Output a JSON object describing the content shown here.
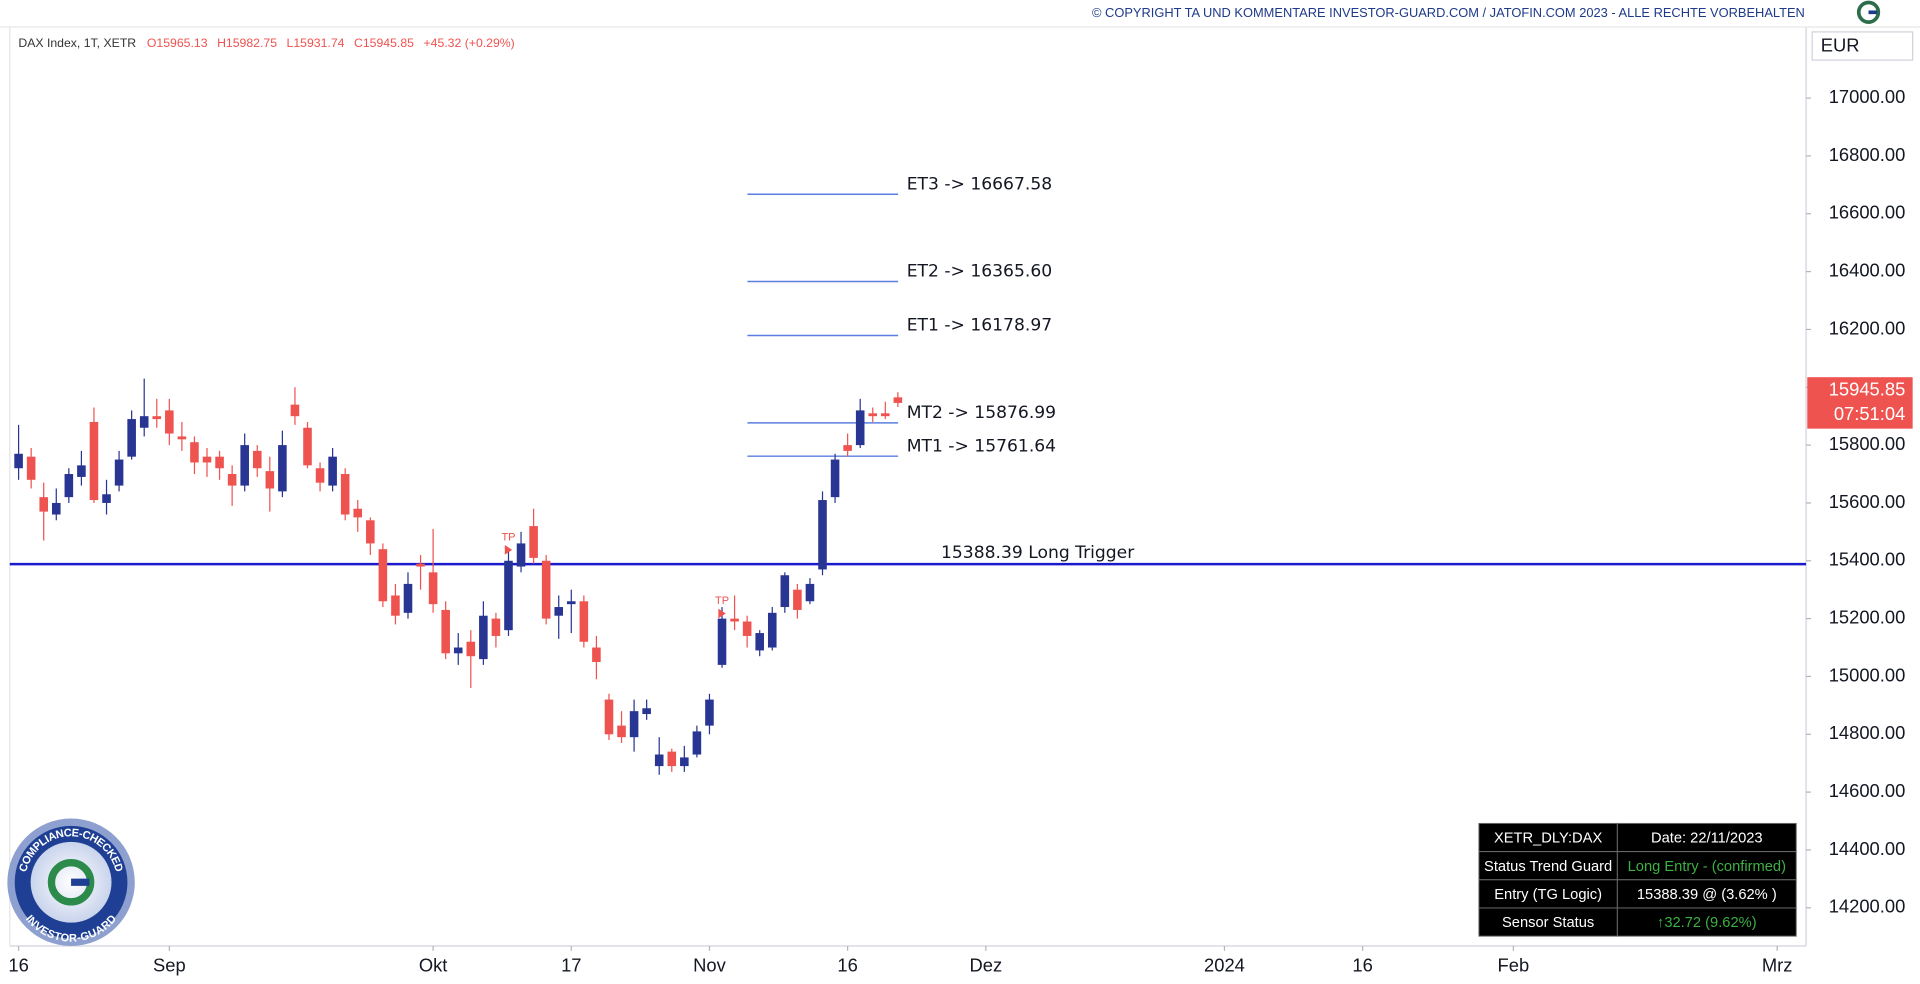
{
  "chart_data": {
    "type": "candlestick",
    "copyright": "© COPYRIGHT TA UND KOMMENTARE INVESTOR-GUARD.COM / JATOFIN.COM 2023 - ALLE RECHTE VORBEHALTEN",
    "title": "DAX Index, 1T, XETR",
    "ohlc_labels": [
      "O15965.13",
      "H15982.75",
      "L15931.74",
      "C15945.85",
      "+45.32 (+0.29%)"
    ],
    "currency": "EUR",
    "last_price_label": "15945.85",
    "countdown": "07:51:04",
    "up_color": "#283593",
    "down_color": "#ef5350",
    "grid": false,
    "xlim": [
      -0.7,
      142.3
    ],
    "xticks": [
      {
        "value": 0,
        "label": "16"
      },
      {
        "value": 12,
        "label": "Sep"
      },
      {
        "value": 33,
        "label": "Okt"
      },
      {
        "value": 44,
        "label": "17"
      },
      {
        "value": 55,
        "label": "Nov"
      },
      {
        "value": 66,
        "label": "16"
      },
      {
        "value": 77,
        "label": "Dez"
      },
      {
        "value": 96,
        "label": "2024"
      },
      {
        "value": 107,
        "label": "16"
      },
      {
        "value": 119,
        "label": "Feb"
      },
      {
        "value": 140,
        "label": "Mrz"
      }
    ],
    "ylim": [
      14068,
      17339
    ],
    "yticks": [
      {
        "value": 14200,
        "label": "14200.00"
      },
      {
        "value": 14400,
        "label": "14400.00"
      },
      {
        "value": 14600,
        "label": "14600.00"
      },
      {
        "value": 14800,
        "label": "14800.00"
      },
      {
        "value": 15000,
        "label": "15000.00"
      },
      {
        "value": 15200,
        "label": "15200.00"
      },
      {
        "value": 15400,
        "label": "15400.00"
      },
      {
        "value": 15600,
        "label": "15600.00"
      },
      {
        "value": 15800,
        "label": "15800.00"
      },
      {
        "value": 16000,
        "label": "16000.00"
      },
      {
        "value": 16200,
        "label": "16200.00"
      },
      {
        "value": 16400,
        "label": "16400.00"
      },
      {
        "value": 16600,
        "label": "16600.00"
      },
      {
        "value": 16800,
        "label": "16800.00"
      },
      {
        "value": 17000,
        "label": "17000.00"
      }
    ],
    "candles": {
      "open": [
        15720,
        15760,
        15620,
        15560,
        15620,
        15690,
        15880,
        15600,
        15660,
        15760,
        15860,
        15900,
        15920,
        15830,
        15810,
        15760,
        15760,
        15700,
        15660,
        15780,
        15710,
        15640,
        15940,
        15860,
        15720,
        15660,
        15700,
        15580,
        15540,
        15440,
        15280,
        15220,
        15390,
        15360,
        15230,
        15080,
        15120,
        15060,
        15200,
        15160,
        15380,
        15520,
        15400,
        15210,
        15250,
        15260,
        15100,
        14920,
        14830,
        14790,
        14870,
        14690,
        14740,
        14690,
        14730,
        14830,
        15040,
        15200,
        15190,
        15090,
        15100,
        15240,
        15300,
        15260,
        15370,
        15620,
        15800,
        15800,
        15910,
        15910,
        15965.13
      ],
      "high": [
        15870,
        15790,
        15670,
        15650,
        15720,
        15780,
        15930,
        15680,
        15780,
        15920,
        16030,
        15960,
        15960,
        15880,
        15830,
        15790,
        15780,
        15730,
        15840,
        15800,
        15760,
        15850,
        16000,
        15880,
        15740,
        15790,
        15720,
        15610,
        15550,
        15460,
        15320,
        15360,
        15420,
        15510,
        15260,
        15150,
        15160,
        15260,
        15220,
        15440,
        15500,
        15580,
        15420,
        15280,
        15300,
        15280,
        15140,
        14940,
        14880,
        14920,
        14920,
        14790,
        14750,
        14760,
        14830,
        14940,
        15240,
        15280,
        15210,
        15160,
        15240,
        15360,
        15320,
        15340,
        15640,
        15770,
        15840,
        15960,
        15930,
        15950,
        15982.75
      ],
      "low": [
        15680,
        15650,
        15470,
        15540,
        15600,
        15660,
        15600,
        15560,
        15640,
        15750,
        15830,
        15860,
        15800,
        15780,
        15700,
        15690,
        15680,
        15590,
        15640,
        15690,
        15570,
        15620,
        15870,
        15720,
        15640,
        15640,
        15540,
        15500,
        15420,
        15240,
        15180,
        15200,
        15300,
        15220,
        15060,
        15040,
        14960,
        15040,
        15100,
        15140,
        15360,
        15390,
        15180,
        15130,
        15150,
        15100,
        14990,
        14780,
        14770,
        14740,
        14850,
        14660,
        14670,
        14670,
        14720,
        14800,
        15030,
        15160,
        15100,
        15070,
        15090,
        15220,
        15200,
        15250,
        15350,
        15600,
        15760,
        15790,
        15880,
        15890,
        15931.74
      ],
      "close": [
        15770,
        15680,
        15570,
        15600,
        15700,
        15730,
        15610,
        15630,
        15750,
        15890,
        15900,
        15890,
        15840,
        15820,
        15740,
        15740,
        15720,
        15660,
        15800,
        15720,
        15650,
        15800,
        15900,
        15730,
        15670,
        15760,
        15560,
        15550,
        15460,
        15260,
        15210,
        15320,
        15380,
        15250,
        15080,
        15100,
        15070,
        15210,
        15140,
        15400,
        15460,
        15410,
        15200,
        15240,
        15260,
        15120,
        15050,
        14800,
        14790,
        14880,
        14890,
        14730,
        14690,
        14720,
        14810,
        14920,
        15200,
        15190,
        15140,
        15150,
        15220,
        15350,
        15230,
        15320,
        15610,
        15750,
        15780,
        15920,
        15900,
        15900,
        15945.85
      ]
    },
    "levels": [
      {
        "value": 16667.58,
        "label": "ET3 -> 16667.58"
      },
      {
        "value": 16365.6,
        "label": "ET2 -> 16365.60"
      },
      {
        "value": 16178.97,
        "label": "ET1 -> 16178.97"
      },
      {
        "value": 15876.99,
        "label": "MT2 -> 15876.99"
      },
      {
        "value": 15761.64,
        "label": "MT1 -> 15761.64"
      }
    ],
    "trigger": {
      "value": 15388.39,
      "label": "15388.39  Long Trigger"
    },
    "annotations": [
      {
        "text": "TP",
        "x": 39,
        "y": 15480
      },
      {
        "text": "TP",
        "x": 56,
        "y": 15260
      }
    ],
    "badge": {
      "top": "COMPLIANCE-CHECKED",
      "bottom": "INVESTOR-GUARD"
    },
    "table": {
      "rows": [
        [
          "XETR_DLY:DAX",
          "Date: 22/11/2023"
        ],
        [
          "Status Trend Guard",
          "Long Entry - (confirmed)"
        ],
        [
          "Entry (TG Logic)",
          "15388.39 @ (3.62% )"
        ],
        [
          "Sensor Status",
          "↑32.72 (9.62%)"
        ]
      ]
    }
  }
}
